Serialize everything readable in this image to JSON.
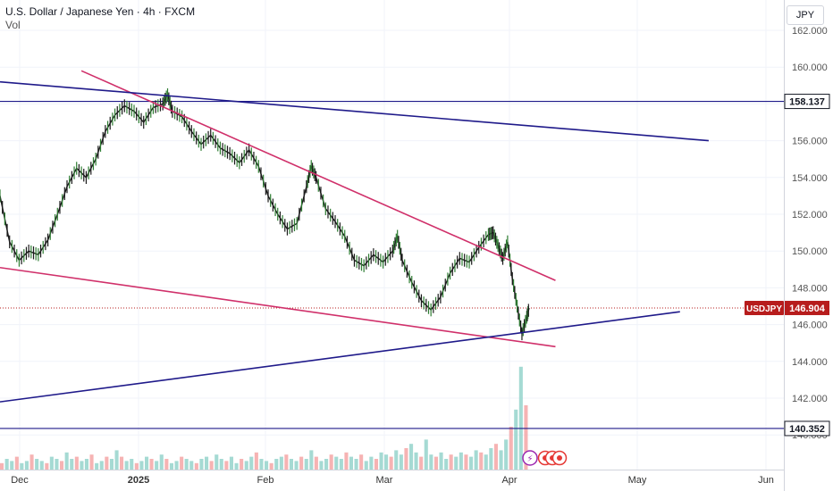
{
  "header": {
    "title": "U.S. Dollar / Japanese Yen · 4h · FXCM",
    "volume_label": "Vol",
    "currency": "JPY"
  },
  "chart_data": {
    "type": "candlestick",
    "title": "U.S. Dollar / Japanese Yen · 4h · FXCM",
    "symbol": "USDJPY",
    "x_ticks": [
      "Dec",
      "2025",
      "Feb",
      "Mar",
      "Apr",
      "May",
      "Jun"
    ],
    "y_ticks": [
      "140.000",
      "142.000",
      "144.000",
      "146.000",
      "148.000",
      "150.000",
      "152.000",
      "154.000",
      "156.000",
      "158.000",
      "160.000",
      "162.000"
    ],
    "ylim": [
      139.5,
      163.0
    ],
    "price_path": [
      [
        0,
        153.0
      ],
      [
        2,
        150.5
      ],
      [
        4,
        149.5
      ],
      [
        6,
        150.0
      ],
      [
        8,
        149.8
      ],
      [
        10,
        150.6
      ],
      [
        12,
        152.0
      ],
      [
        14,
        153.5
      ],
      [
        16,
        154.5
      ],
      [
        18,
        154.0
      ],
      [
        20,
        155.0
      ],
      [
        22,
        156.5
      ],
      [
        24,
        157.4
      ],
      [
        26,
        157.9
      ],
      [
        28,
        157.6
      ],
      [
        30,
        157.0
      ],
      [
        32,
        157.8
      ],
      [
        34,
        158.0
      ],
      [
        35,
        158.5
      ],
      [
        36,
        157.6
      ],
      [
        38,
        157.3
      ],
      [
        40,
        156.5
      ],
      [
        42,
        155.8
      ],
      [
        44,
        156.3
      ],
      [
        46,
        155.6
      ],
      [
        48,
        155.3
      ],
      [
        50,
        154.8
      ],
      [
        52,
        155.5
      ],
      [
        54,
        154.6
      ],
      [
        56,
        153.0
      ],
      [
        58,
        152.0
      ],
      [
        60,
        151.2
      ],
      [
        62,
        151.5
      ],
      [
        64,
        153.5
      ],
      [
        65,
        154.6
      ],
      [
        66,
        154.0
      ],
      [
        68,
        152.3
      ],
      [
        70,
        151.6
      ],
      [
        72,
        150.8
      ],
      [
        74,
        149.5
      ],
      [
        76,
        149.2
      ],
      [
        78,
        149.8
      ],
      [
        80,
        149.4
      ],
      [
        82,
        150.0
      ],
      [
        83,
        150.8
      ],
      [
        84,
        149.5
      ],
      [
        86,
        148.3
      ],
      [
        88,
        147.3
      ],
      [
        90,
        146.8
      ],
      [
        92,
        147.5
      ],
      [
        94,
        148.8
      ],
      [
        96,
        149.6
      ],
      [
        98,
        149.4
      ],
      [
        100,
        150.2
      ],
      [
        102,
        150.9
      ],
      [
        103,
        151.0
      ],
      [
        104,
        150.3
      ],
      [
        105,
        149.6
      ],
      [
        106,
        150.5
      ],
      [
        107,
        148.5
      ],
      [
        108,
        147.0
      ],
      [
        109,
        145.5
      ],
      [
        110,
        146.4
      ],
      [
        110.5,
        146.9
      ]
    ],
    "high_low": {
      "high": 158.8,
      "low": 145.4
    },
    "volume_bars": [
      3,
      5,
      4,
      6,
      3,
      4,
      7,
      5,
      4,
      3,
      6,
      5,
      4,
      8,
      5,
      6,
      4,
      5,
      7,
      3,
      4,
      6,
      5,
      9,
      6,
      4,
      5,
      3,
      4,
      6,
      5,
      4,
      7,
      5,
      3,
      4,
      6,
      5,
      4,
      3,
      5,
      6,
      4,
      7,
      5,
      4,
      6,
      3,
      5,
      4,
      6,
      8,
      5,
      4,
      3,
      5,
      6,
      7,
      5,
      4,
      6,
      5,
      9,
      6,
      4,
      5,
      7,
      6,
      5,
      8,
      6,
      5,
      7,
      4,
      6,
      5,
      8,
      7,
      6,
      9,
      7,
      10,
      12,
      8,
      6,
      14,
      7,
      6,
      8,
      5,
      7,
      6,
      8,
      7,
      6,
      9,
      8,
      7,
      10,
      12,
      9,
      14,
      20,
      28,
      48,
      30
    ],
    "trendlines": [
      {
        "name": "upper-resistance",
        "color": "#d0306a",
        "from": [
          17,
          159.8
        ],
        "to": [
          116,
          148.4
        ]
      },
      {
        "name": "lower-support",
        "color": "#d0306a",
        "from": [
          0,
          149.1
        ],
        "to": [
          116,
          144.8
        ]
      },
      {
        "name": "long-down",
        "color": "#1f1a8a",
        "from": [
          0,
          159.2
        ],
        "to": [
          148,
          156.0
        ]
      },
      {
        "name": "long-up",
        "color": "#1f1a8a",
        "from": [
          0,
          141.8
        ],
        "to": [
          142,
          146.7
        ]
      }
    ],
    "horizontal_levels": [
      {
        "label": "158.137",
        "value": 158.137,
        "color": "#1f1a8a"
      },
      {
        "label": "140.352",
        "value": 140.352,
        "color": "#1f1a8a"
      }
    ],
    "last_price": {
      "label": "USDJPY",
      "value": "146.904",
      "color": "#b71c1c"
    }
  }
}
